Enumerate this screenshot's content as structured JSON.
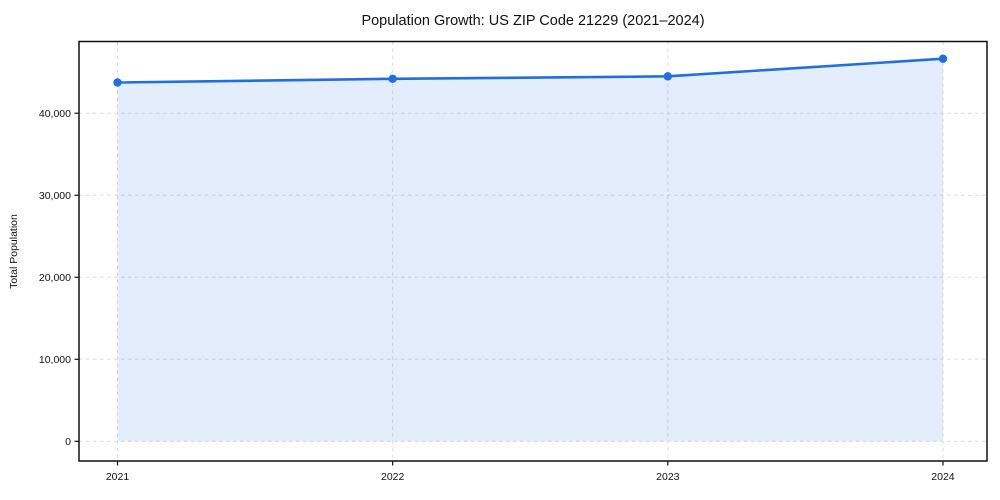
{
  "figure": {
    "title": "Population Growth: US ZIP Code 21229 (2021–2024)"
  },
  "chart_data": {
    "type": "area",
    "title": "Population Growth: US ZIP Code 21229 (2021–2024)",
    "xlabel": "",
    "ylabel": "Total Population",
    "x": [
      2021,
      2022,
      2023,
      2024
    ],
    "x_tick_labels": [
      "2021",
      "2022",
      "2023",
      "2024"
    ],
    "series": [
      {
        "name": "Total Population",
        "values": [
          43750,
          44200,
          44500,
          46650
        ]
      }
    ],
    "y_ticks": [
      0,
      10000,
      20000,
      30000,
      40000
    ],
    "y_tick_labels": [
      "0",
      "10,000",
      "20,000",
      "30,000",
      "40,000"
    ],
    "xlim": [
      2020.86,
      2024.16
    ],
    "ylim": [
      -2400,
      48750
    ],
    "grid": true,
    "grid_style": "dashed",
    "legend_position": "none",
    "colors": {
      "line": "#1f6fe0",
      "marker": "#1f6fe0",
      "fill": "rgba(31,111,224,0.12)",
      "grid": "#dcdcdc",
      "spine": "#111111",
      "text": "#111111",
      "background": "#ffffff"
    }
  }
}
